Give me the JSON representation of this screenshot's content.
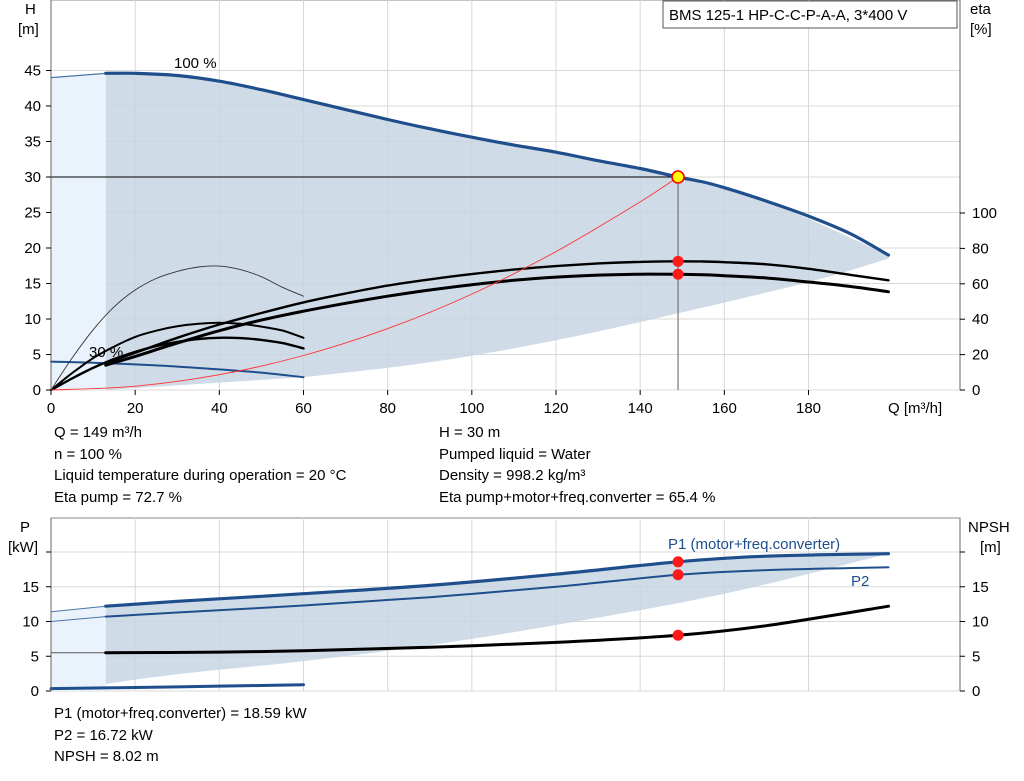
{
  "chart_data": [
    {
      "type": "line",
      "title": "BMS 125-1 HP-C-C-P-A-A, 3*400 V",
      "xlabel": "Q [m³/h]",
      "x_ticks": [
        "0",
        "20",
        "40",
        "60",
        "80",
        "100",
        "120",
        "140",
        "160",
        "180"
      ],
      "xlim": [
        0,
        216
      ],
      "left_axis": {
        "label_line1": "H",
        "label_line2": "[m]",
        "ylim": [
          0,
          50
        ],
        "ticks": [
          "0",
          "5",
          "10",
          "15",
          "20",
          "25",
          "30",
          "35",
          "40",
          "45"
        ]
      },
      "right_axis": {
        "label_line1": "eta",
        "label_line2": "[%]",
        "ylim": [
          0,
          110
        ],
        "ticks": [
          "0",
          "20",
          "40",
          "60",
          "80",
          "100"
        ]
      },
      "speed_labels": {
        "full": "100 %",
        "min": "30 %"
      },
      "series": [
        {
          "role": "head_100",
          "axis": "left",
          "color": "#1f4e8c",
          "x": [
            13,
            20,
            30,
            40,
            50,
            60,
            70,
            80,
            90,
            100,
            110,
            120,
            130,
            140,
            149,
            155,
            160,
            170,
            180,
            190,
            199
          ],
          "y": [
            44.6,
            44.6,
            44.3,
            43.5,
            42.3,
            40.9,
            39.5,
            38.1,
            36.8,
            35.6,
            34.5,
            33.5,
            32.3,
            31.2,
            30.0,
            29.3,
            28.5,
            26.6,
            24.5,
            22.0,
            19.0
          ]
        },
        {
          "role": "head_min",
          "axis": "left",
          "color": "#1f4e8c",
          "x": [
            0,
            10,
            20,
            30,
            40,
            50,
            60
          ],
          "y": [
            4.0,
            3.85,
            3.6,
            3.3,
            2.9,
            2.45,
            1.8
          ]
        },
        {
          "role": "eta_pump",
          "axis": "right",
          "color": "#000000",
          "x": [
            13,
            20,
            30,
            40,
            50,
            60,
            70,
            80,
            90,
            100,
            110,
            120,
            130,
            140,
            149,
            155,
            160,
            170,
            180,
            190,
            199
          ],
          "y": [
            15,
            21,
            29.5,
            37,
            43.5,
            49.5,
            54.5,
            59,
            62.5,
            65.5,
            68,
            70,
            71.5,
            72.4,
            72.7,
            72.6,
            72.2,
            71,
            68.5,
            65,
            62
          ]
        },
        {
          "role": "eta_total",
          "axis": "right",
          "color": "#000000",
          "x": [
            13,
            20,
            30,
            40,
            50,
            60,
            70,
            80,
            90,
            100,
            110,
            120,
            130,
            140,
            149,
            155,
            160,
            170,
            180,
            190,
            199
          ],
          "y": [
            14,
            19,
            26.5,
            33.5,
            39.5,
            44.5,
            49,
            53,
            56.5,
            59.5,
            62,
            63.8,
            64.9,
            65.4,
            65.4,
            65.1,
            64.6,
            63.3,
            61,
            58.5,
            55.5
          ]
        },
        {
          "role": "eta_pump_min",
          "axis": "right",
          "color": "#000000",
          "x": [
            0,
            5,
            10,
            15,
            20,
            25,
            30,
            35,
            40,
            45,
            50,
            55,
            60
          ],
          "y": [
            0,
            9.5,
            18,
            24.5,
            30,
            33.5,
            36,
            37.4,
            38,
            37.4,
            35.8,
            33.6,
            29.5
          ]
        },
        {
          "role": "eta_total_min",
          "axis": "right",
          "color": "#000000",
          "x": [
            0,
            5,
            10,
            15,
            20,
            25,
            30,
            35,
            40,
            45,
            50,
            55,
            60
          ],
          "y": [
            0,
            6.5,
            12.5,
            17.5,
            21.5,
            24.8,
            27.2,
            28.8,
            29.5,
            29.3,
            28.3,
            26.5,
            23.5
          ]
        },
        {
          "role": "eta_thin_min",
          "axis": "right",
          "color": "#333333",
          "x": [
            0,
            5,
            10,
            15,
            20,
            25,
            30,
            35,
            40,
            45,
            50,
            55,
            60
          ],
          "y": [
            0,
            18,
            34,
            47,
            56.5,
            63,
            67,
            69.5,
            70,
            68,
            64,
            58,
            53
          ]
        },
        {
          "role": "system_curve",
          "axis": "left",
          "color": "#ff3333",
          "x": [
            0,
            20,
            40,
            60,
            80,
            100,
            120,
            140,
            149
          ],
          "y": [
            0,
            0.54,
            2.16,
            4.86,
            8.65,
            13.5,
            19.5,
            26.5,
            30.0
          ]
        }
      ],
      "envelope": {
        "top_x": [
          13,
          30,
          60,
          90,
          120,
          149,
          170,
          199
        ],
        "top_y": [
          44.6,
          44.3,
          40.9,
          36.8,
          33.5,
          30.0,
          26.6,
          19.0
        ],
        "bottom_x": [
          60,
          90,
          120,
          149,
          180,
          199
        ],
        "bottom_y": [
          1.8,
          3.9,
          7.0,
          10.8,
          15.2,
          18.5
        ]
      },
      "duty_point": {
        "x": 149,
        "y": 30,
        "eta_pump": 72.7,
        "eta_total": 65.4
      }
    },
    {
      "type": "line",
      "xlim": [
        0,
        216
      ],
      "left_axis": {
        "label_line1": "P",
        "label_line2": "[kW]",
        "ylim": [
          0,
          21
        ],
        "ticks": [
          "0",
          "5",
          "10",
          "15"
        ]
      },
      "right_axis": {
        "label_line1": "NPSH",
        "label_line2": "[m]",
        "ylim": [
          0,
          21
        ],
        "ticks": [
          "0",
          "5",
          "10",
          "15"
        ]
      },
      "series_labels": {
        "p1": "P1 (motor+freq.converter)",
        "p2": "P2"
      },
      "series": [
        {
          "role": "p1",
          "axis": "left",
          "color": "#1f4e8c",
          "x": [
            13,
            30,
            60,
            90,
            120,
            149,
            170,
            199
          ],
          "y": [
            12.2,
            12.9,
            14.0,
            15.2,
            16.8,
            18.59,
            19.4,
            19.75
          ]
        },
        {
          "role": "p2",
          "axis": "left",
          "color": "#1f4e8c",
          "x": [
            13,
            30,
            60,
            90,
            120,
            149,
            170,
            199
          ],
          "y": [
            10.7,
            11.3,
            12.3,
            13.5,
            15.0,
            16.72,
            17.4,
            17.8
          ]
        },
        {
          "role": "npsh",
          "axis": "right",
          "color": "#000000",
          "x": [
            13,
            40,
            60,
            90,
            120,
            149,
            170,
            199
          ],
          "y": [
            5.5,
            5.6,
            5.8,
            6.3,
            7.0,
            8.02,
            9.4,
            12.2
          ]
        },
        {
          "role": "p_min",
          "axis": "left",
          "color": "#1f4e8c",
          "x": [
            0,
            20,
            40,
            60
          ],
          "y": [
            0.35,
            0.5,
            0.7,
            0.9
          ]
        }
      ],
      "duty_points": [
        18.59,
        16.72,
        8.02
      ],
      "duty_x": 149
    }
  ],
  "info_top_left": [
    "Q = 149 m³/h",
    "n = 100 %",
    "Liquid temperature during operation = 20 °C",
    "Eta pump = 72.7 %"
  ],
  "info_top_right": [
    "H = 30 m",
    "Pumped liquid = Water",
    "Density = 998.2 kg/m³",
    "Eta pump+motor+freq.converter = 65.4 %"
  ],
  "info_bottom": [
    "P1 (motor+freq.converter) = 18.59 kW",
    "P2 = 16.72 kW",
    "NPSH = 8.02 m"
  ]
}
